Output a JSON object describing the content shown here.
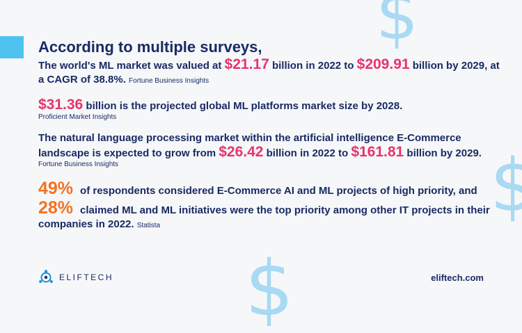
{
  "decor": {
    "dollar_glyph": "$",
    "dollar_color": "#a9d9f3",
    "accent_color": "#4fc3f0"
  },
  "heading": "According to multiple surveys,",
  "stat1": {
    "text_a": "The world's ML market was valued at ",
    "value_a": "$21.17",
    "text_b": " billion in 2022 to ",
    "value_b": "$209.91",
    "text_c": " billion by 2029, at a CAGR of 38.8%. ",
    "source": "Fortune Business Insights"
  },
  "stat2": {
    "value": "$31.36",
    "text": " billion is the projected global ML  platforms market size by 2028.",
    "source": "Proficient Market Insights"
  },
  "stat3": {
    "text_a": "The natural language processing market within the artificial intelligence E-Commerce landscape is expected to grow from ",
    "value_a": "$26.42",
    "text_b": " billion in 2022 to ",
    "value_b": "$161.81",
    "text_c": " billion by 2029.",
    "source": "Fortune Business Insights"
  },
  "stat4": {
    "value": "49%",
    "text": "of respondents considered E-Commerce AI and ML projects of high priority, and"
  },
  "stat5": {
    "value": "28%",
    "text": "claimed ML and ML initiatives were the top priority among other IT projects in their companies in 2022. ",
    "source": "Statista"
  },
  "footer": {
    "logo_text": "ELIFTECH",
    "logo_icon": "eliftech-logo-icon",
    "website": "eliftech.com"
  },
  "colors": {
    "primary": "#1a2a63",
    "highlight": "#e8336c",
    "orange": "#f37321",
    "background": "#f5f7f9"
  }
}
